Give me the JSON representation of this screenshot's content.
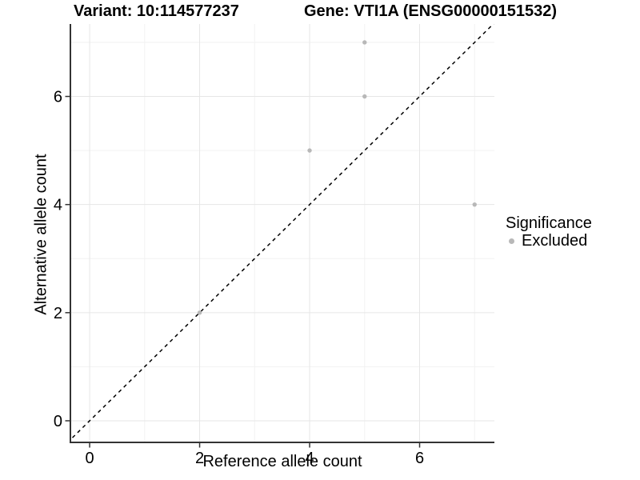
{
  "header": {
    "title_left": "Variant: 10:114577237",
    "title_right": "Gene: VTI1A (ENSG00000151532)"
  },
  "legend": {
    "title": "Significance",
    "entries": [
      {
        "label": "Excluded",
        "color": "#b8b8b8"
      }
    ]
  },
  "colors": {
    "background": "#ffffff",
    "grid_major": "#e6e6e6",
    "grid_minor": "#f2f2f2",
    "axis_line": "#333333",
    "tick_mark": "#333333",
    "point": "#b8b8b8",
    "reference_line": "#000000",
    "text": "#000000"
  },
  "chart_data": {
    "type": "scatter",
    "title_left": "Variant: 10:114577237",
    "title_right": "Gene: VTI1A (ENSG00000151532)",
    "xlabel": "Reference allele count",
    "ylabel": "Alternative allele count",
    "series": [
      {
        "name": "Excluded",
        "color": "#b8b8b8",
        "points": [
          [
            2,
            2
          ],
          [
            4,
            5
          ],
          [
            5,
            6
          ],
          [
            5,
            7
          ],
          [
            7,
            4
          ]
        ]
      }
    ],
    "reference_line": {
      "type": "identity y=x",
      "style": "dashed",
      "color": "#000000"
    },
    "xlim": [
      -0.35,
      7.36
    ],
    "ylim": [
      -0.4,
      7.34
    ],
    "x_ticks": [
      0,
      2,
      4,
      6
    ],
    "y_ticks": [
      0,
      2,
      4,
      6
    ],
    "x_minor_gridlines": [
      1,
      3,
      5,
      7
    ],
    "y_minor_gridlines": [
      1,
      3,
      5,
      7
    ],
    "grid": "major and minor gridlines, light gray on white",
    "legend_title": "Significance",
    "legend_position": "right"
  }
}
